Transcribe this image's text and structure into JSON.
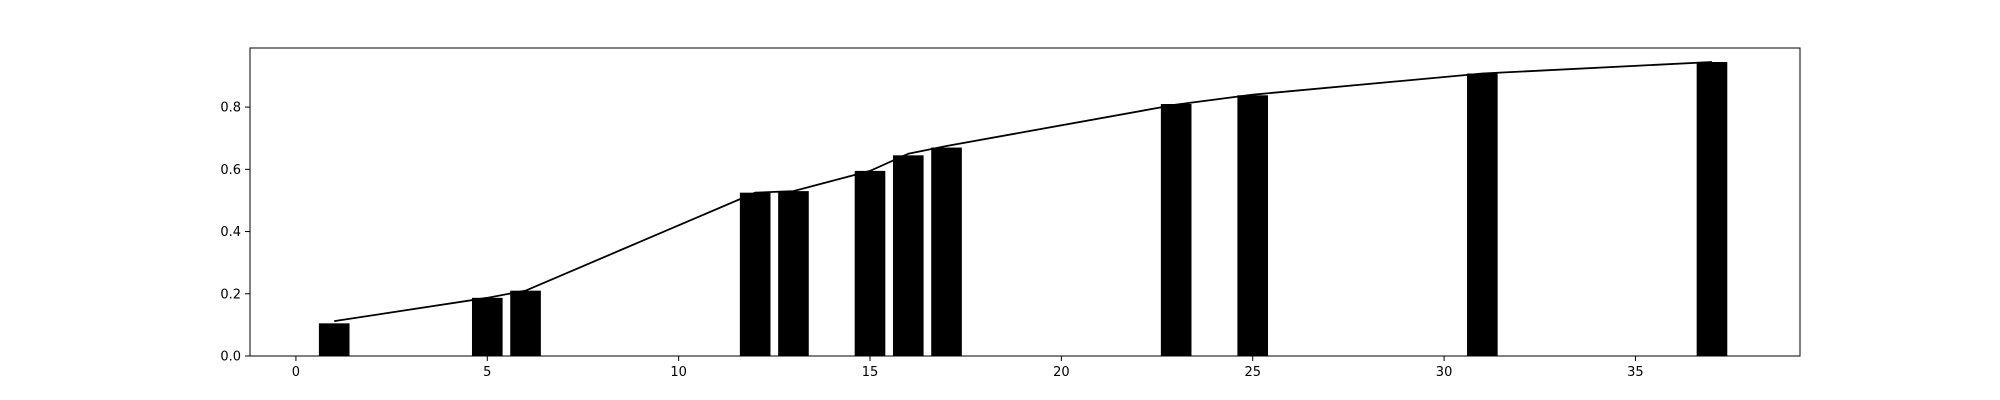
{
  "chart_data": {
    "type": "bar",
    "title": "",
    "xlabel": "",
    "ylabel": "",
    "xlim": [
      -1.2,
      39.3
    ],
    "ylim": [
      0,
      0.99
    ],
    "grid": false,
    "xticks": [
      0,
      5,
      10,
      15,
      20,
      25,
      30,
      35
    ],
    "xtick_labels": [
      "0",
      "5",
      "10",
      "15",
      "20",
      "25",
      "30",
      "35"
    ],
    "yticks": [
      0.0,
      0.2,
      0.4,
      0.6,
      0.8
    ],
    "ytick_labels": [
      "0.0",
      "0.2",
      "0.4",
      "0.6",
      "0.8"
    ],
    "bar_width": 0.8,
    "bars": {
      "x": [
        1,
        5,
        6,
        12,
        13,
        15,
        16,
        17,
        23,
        25,
        31,
        37
      ],
      "values": [
        0.105,
        0.187,
        0.21,
        0.525,
        0.53,
        0.595,
        0.645,
        0.67,
        0.81,
        0.838,
        0.908,
        0.945
      ],
      "color": "#000000"
    },
    "line": {
      "x": [
        1,
        5,
        6,
        12,
        13,
        15,
        16,
        17,
        23,
        25,
        31,
        37
      ],
      "values": [
        0.112,
        0.187,
        0.21,
        0.525,
        0.53,
        0.595,
        0.65,
        0.675,
        0.808,
        0.84,
        0.908,
        0.945
      ],
      "color": "#000000"
    }
  }
}
